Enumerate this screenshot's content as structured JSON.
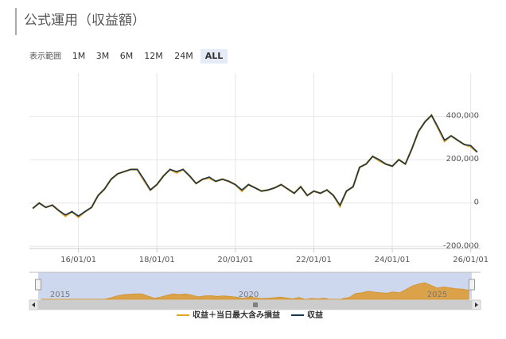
{
  "title": "公式運用（収益額）",
  "range_selector": {
    "label": "表示範囲",
    "buttons": [
      "1M",
      "3M",
      "6M",
      "12M",
      "24M",
      "ALL"
    ],
    "selected": 5
  },
  "chart_data": {
    "type": "line",
    "x": [
      "14/11/01",
      "15/01/01",
      "15/03/01",
      "15/05/01",
      "15/07/01",
      "15/09/01",
      "15/11/01",
      "16/01/01",
      "16/03/01",
      "16/05/01",
      "16/07/01",
      "16/09/01",
      "16/11/01",
      "17/01/01",
      "17/03/01",
      "17/05/01",
      "17/07/01",
      "17/09/01",
      "17/11/01",
      "18/01/01",
      "18/03/01",
      "18/05/01",
      "18/07/01",
      "18/09/01",
      "18/11/01",
      "19/01/01",
      "19/03/01",
      "19/05/01",
      "19/07/01",
      "19/09/01",
      "19/11/01",
      "20/01/01",
      "20/03/01",
      "20/05/01",
      "20/07/01",
      "20/09/01",
      "20/11/01",
      "21/01/01",
      "21/03/01",
      "21/05/01",
      "21/07/01",
      "21/09/01",
      "21/11/01",
      "22/01/01",
      "22/03/01",
      "22/05/01",
      "22/07/01",
      "22/09/01",
      "22/11/01",
      "23/01/01",
      "23/03/01",
      "23/05/01",
      "23/07/01",
      "23/09/01",
      "23/11/01",
      "24/01/01",
      "24/03/01",
      "24/05/01",
      "24/07/01",
      "24/09/01",
      "24/11/01",
      "25/01/01",
      "25/03/01",
      "25/05/01",
      "25/07/01",
      "25/09/01",
      "25/11/01",
      "26/01/01",
      "26/03/01"
    ],
    "series": [
      {
        "name": "収益＋当日最大含み損益",
        "color": "#e0a526",
        "values": [
          -25000,
          0,
          -20000,
          -10000,
          -35000,
          -60000,
          -40000,
          -65000,
          -40000,
          -20000,
          35000,
          65000,
          110000,
          135000,
          145000,
          155000,
          155000,
          105000,
          60000,
          85000,
          125000,
          155000,
          140000,
          155000,
          125000,
          90000,
          110000,
          115000,
          100000,
          110000,
          100000,
          85000,
          55000,
          85000,
          70000,
          55000,
          60000,
          70000,
          85000,
          65000,
          45000,
          75000,
          35000,
          55000,
          45000,
          60000,
          35000,
          -15000,
          55000,
          75000,
          165000,
          180000,
          215000,
          195000,
          180000,
          170000,
          200000,
          180000,
          250000,
          330000,
          375000,
          405000,
          345000,
          285000,
          310000,
          290000,
          270000,
          260000,
          235000
        ]
      },
      {
        "name": "収益",
        "color": "#1b3650",
        "values": [
          -25000,
          0,
          -20000,
          -10000,
          -35000,
          -55000,
          -40000,
          -60000,
          -40000,
          -20000,
          35000,
          65000,
          110000,
          135000,
          145000,
          155000,
          155000,
          110000,
          60000,
          85000,
          125000,
          155000,
          145000,
          155000,
          125000,
          90000,
          110000,
          120000,
          100000,
          110000,
          100000,
          85000,
          60000,
          85000,
          70000,
          55000,
          60000,
          70000,
          85000,
          65000,
          45000,
          75000,
          35000,
          55000,
          45000,
          60000,
          35000,
          -10000,
          55000,
          75000,
          165000,
          180000,
          215000,
          200000,
          180000,
          170000,
          200000,
          180000,
          250000,
          330000,
          375000,
          405000,
          350000,
          290000,
          310000,
          290000,
          270000,
          265000,
          235000
        ]
      }
    ],
    "xlim": [
      "14/10/01",
      "26/04/01"
    ],
    "xticks": [
      "16/01/01",
      "18/01/01",
      "20/01/01",
      "22/01/01",
      "24/01/01",
      "26/01/01"
    ],
    "ylim": [
      -210000,
      600000
    ],
    "yticks": [
      {
        "value": -200000,
        "label": "-200,000"
      },
      0,
      {
        "value": 200000,
        "label": "200,000"
      },
      {
        "value": 400000,
        "label": "400,000"
      }
    ],
    "grid": true,
    "navigator": {
      "xticks": [
        {
          "value": "15/01/01",
          "label": "2015"
        },
        {
          "value": "20/01/01",
          "label": "2020"
        },
        {
          "value": "25/01/01",
          "label": "2025"
        }
      ]
    },
    "legend": "bottom"
  }
}
